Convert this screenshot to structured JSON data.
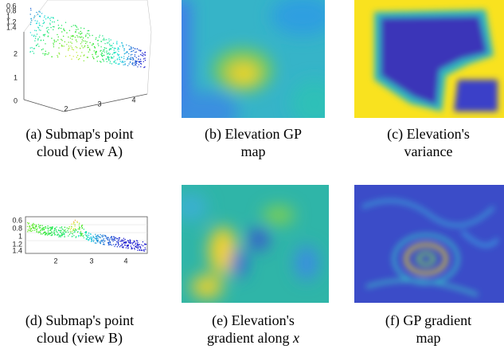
{
  "panels": [
    {
      "caption": [
        "(a) Submap's point",
        "cloud (view A)"
      ],
      "ticks_z": [
        "0.6",
        "0.8",
        "1",
        "1.2",
        "1.4"
      ],
      "ticks_y": [
        "2",
        "1",
        "0"
      ],
      "ticks_x": [
        "2",
        "3",
        "4"
      ]
    },
    {
      "caption": [
        "(b) Elevation GP",
        "map"
      ]
    },
    {
      "caption": [
        "(c) Elevation's",
        "variance"
      ]
    },
    {
      "caption": [
        "(d) Submap's point",
        "cloud (view B)"
      ],
      "ticks_y": [
        "0.6",
        "0.8",
        "1",
        "1.2",
        "1.4"
      ],
      "ticks_x": [
        "2",
        "3",
        "4"
      ]
    },
    {
      "caption": [
        "(e) Elevation's",
        "gradient along"
      ],
      "caption_math": "x"
    },
    {
      "caption": [
        "(f) GP gradient",
        "map"
      ]
    }
  ]
}
